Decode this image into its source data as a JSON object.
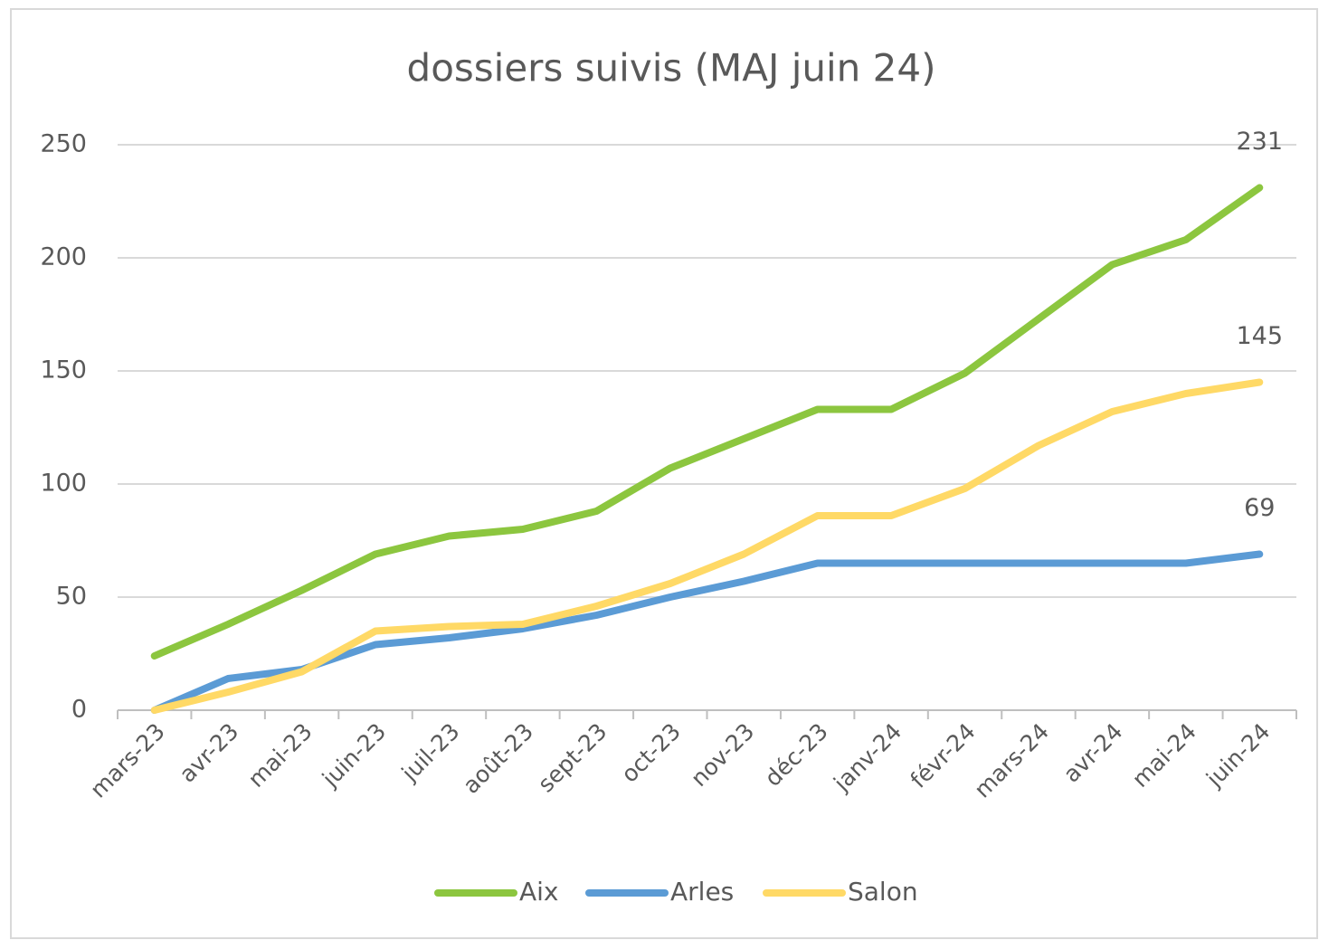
{
  "chart_data": {
    "type": "line",
    "title": "dossiers suivis  (MAJ juin 24)",
    "categories": [
      "mars-23",
      "avr-23",
      "mai-23",
      "juin-23",
      "juil-23",
      "août-23",
      "sept-23",
      "oct-23",
      "nov-23",
      "déc-23",
      "janv-24",
      "févr-24",
      "mars-24",
      "avr-24",
      "mai-24",
      "juin-24"
    ],
    "series": [
      {
        "name": "Aix",
        "color": "#8cc63f",
        "values": [
          24,
          38,
          53,
          69,
          77,
          80,
          88,
          107,
          120,
          133,
          133,
          149,
          173,
          197,
          208,
          231
        ]
      },
      {
        "name": "Arles",
        "color": "#5b9bd5",
        "values": [
          0,
          14,
          18,
          29,
          32,
          36,
          42,
          50,
          57,
          65,
          65,
          65,
          65,
          65,
          65,
          69
        ]
      },
      {
        "name": "Salon",
        "color": "#ffd966",
        "values": [
          0,
          8,
          17,
          35,
          37,
          38,
          46,
          56,
          69,
          86,
          86,
          98,
          117,
          132,
          140,
          145
        ]
      }
    ],
    "ylim": [
      0,
      250
    ],
    "yticks": [
      0,
      50,
      100,
      150,
      200,
      250
    ],
    "grid": true,
    "legend": "bottom"
  }
}
